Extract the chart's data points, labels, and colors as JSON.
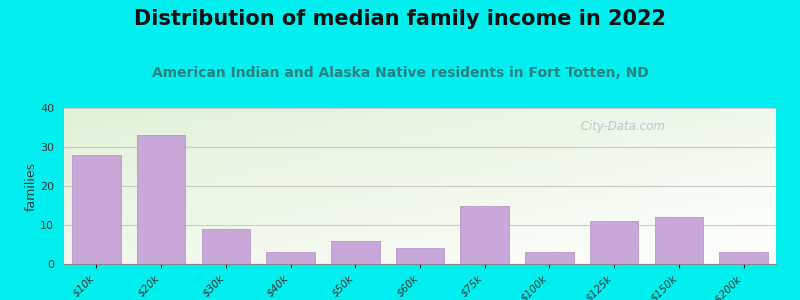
{
  "title": "Distribution of median family income in 2022",
  "subtitle": "American Indian and Alaska Native residents in Fort Totten, ND",
  "categories": [
    "$10k",
    "$20k",
    "$30k",
    "$40k",
    "$50k",
    "$60k",
    "$75k",
    "$100k",
    "$125k",
    "$150k",
    ">$200k"
  ],
  "values": [
    28,
    33,
    9,
    3,
    6,
    4,
    15,
    3,
    11,
    12,
    3
  ],
  "bar_color": "#c8a8d8",
  "bar_edge_color": "#b898c8",
  "ylabel": "families",
  "ylim": [
    0,
    40
  ],
  "yticks": [
    0,
    10,
    20,
    30,
    40
  ],
  "background_outer": "#00f0f0",
  "title_fontsize": 15,
  "subtitle_fontsize": 10,
  "title_color": "#111111",
  "subtitle_color": "#2a8080",
  "watermark": " City-Data.com",
  "grid_color": "#cccccc"
}
